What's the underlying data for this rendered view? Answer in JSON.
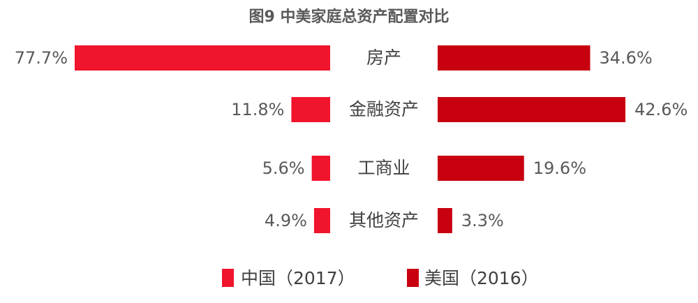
{
  "chart_data": {
    "type": "bar",
    "orientation": "horizontal-butterfly",
    "title": "图9 中美家庭总资产配置对比",
    "categories": [
      "房产",
      "金融资产",
      "工商业",
      "其他资产"
    ],
    "series": [
      {
        "name": "中国（2017）",
        "values": [
          77.7,
          11.8,
          5.6,
          4.9
        ],
        "labels": [
          "77.7%",
          "11.8%",
          "5.6%",
          "4.9%"
        ],
        "color": "#f0142d"
      },
      {
        "name": "美国（2016）",
        "values": [
          34.6,
          42.6,
          19.6,
          3.3
        ],
        "labels": [
          "34.6%",
          "42.6%",
          "19.6%",
          "3.3%"
        ],
        "color": "#c8000f"
      }
    ],
    "unit": "%",
    "legend": "bottom-center",
    "grid": false
  }
}
